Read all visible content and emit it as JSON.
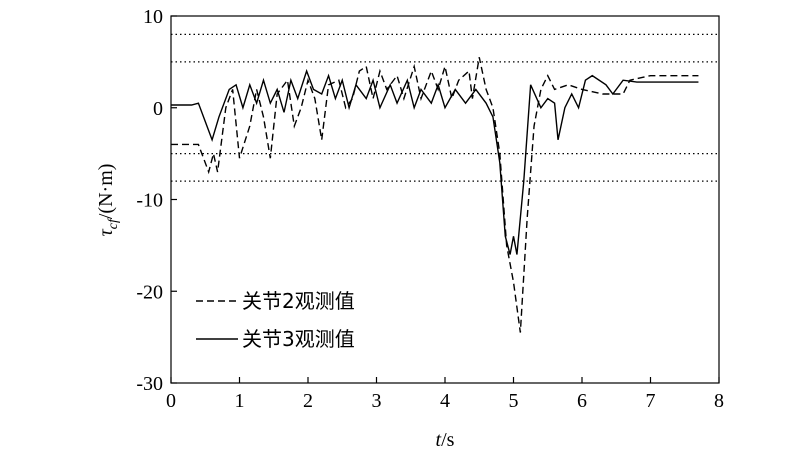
{
  "chart_data": {
    "type": "line",
    "xlabel": {
      "symbol": "t",
      "unit": "/s"
    },
    "ylabel": {
      "symbol": "τ",
      "subscript": "cf",
      "unit": "/(N·m)"
    },
    "xlim": [
      0,
      8
    ],
    "xticks": [
      0,
      1,
      2,
      3,
      4,
      5,
      6,
      7,
      8
    ],
    "ylim": [
      -30,
      10
    ],
    "yticks": [
      -30,
      -20,
      -10,
      0,
      10
    ],
    "reference_lines": [
      8,
      5,
      -5,
      -8
    ],
    "legend": "lower left",
    "series": [
      {
        "name": "关节2观测值",
        "color": "#000000",
        "dash": "dashed",
        "x": [
          0,
          0.4,
          0.55,
          0.62,
          0.68,
          0.8,
          0.9,
          1.0,
          1.15,
          1.25,
          1.35,
          1.45,
          1.55,
          1.7,
          1.8,
          1.9,
          2.0,
          2.1,
          2.2,
          2.3,
          2.45,
          2.55,
          2.65,
          2.75,
          2.85,
          2.95,
          3.05,
          3.15,
          3.3,
          3.4,
          3.55,
          3.65,
          3.8,
          3.9,
          4.0,
          4.1,
          4.2,
          4.35,
          4.4,
          4.5,
          4.6,
          4.7,
          4.8,
          4.9,
          5.0,
          5.1,
          5.2,
          5.3,
          5.4,
          5.5,
          5.6,
          5.8,
          6.0,
          6.3,
          6.6,
          6.7,
          7.0,
          7.7
        ],
        "values": [
          -4,
          -4,
          -7,
          -5,
          -7,
          0,
          2,
          -5.5,
          -2,
          2,
          -1,
          -5.5,
          1.5,
          3,
          -2,
          0,
          3,
          1,
          -3.5,
          2.5,
          3,
          0,
          1,
          4,
          4.5,
          1,
          4,
          2,
          3.5,
          1,
          4.5,
          1,
          4,
          2,
          4.5,
          1,
          3,
          4,
          1,
          5.5,
          2,
          0,
          -5,
          -15,
          -19,
          -24.5,
          -12,
          -2,
          2,
          3.5,
          2,
          2.5,
          2,
          1.5,
          1.5,
          3,
          3.5,
          3.5
        ]
      },
      {
        "name": "关节3观测值",
        "color": "#000000",
        "dash": "solid",
        "x": [
          0,
          0.3,
          0.4,
          0.5,
          0.6,
          0.7,
          0.75,
          0.85,
          0.95,
          1.05,
          1.15,
          1.25,
          1.35,
          1.45,
          1.55,
          1.65,
          1.75,
          1.85,
          1.98,
          2.08,
          2.2,
          2.3,
          2.4,
          2.5,
          2.6,
          2.7,
          2.85,
          2.95,
          3.05,
          3.2,
          3.3,
          3.45,
          3.55,
          3.65,
          3.8,
          3.9,
          4.0,
          4.15,
          4.3,
          4.45,
          4.6,
          4.7,
          4.8,
          4.88,
          4.95,
          5.0,
          5.05,
          5.15,
          5.25,
          5.4,
          5.5,
          5.6,
          5.65,
          5.75,
          5.85,
          5.95,
          6.05,
          6.15,
          6.35,
          6.45,
          6.6,
          6.8,
          7.7
        ],
        "values": [
          0.3,
          0.3,
          0.5,
          -1.5,
          -3.5,
          -1,
          0,
          2,
          2.5,
          0,
          2.5,
          0.5,
          3,
          0.5,
          2,
          -0.5,
          3,
          1,
          4,
          2,
          1.5,
          3.5,
          1,
          3,
          0,
          2.5,
          1,
          3,
          0,
          2.5,
          0.5,
          3,
          0,
          2,
          0.5,
          2.5,
          0,
          2,
          0.5,
          2,
          0.5,
          -1,
          -6,
          -14,
          -16,
          -14,
          -16,
          -8,
          2.5,
          0,
          1,
          0.5,
          -3.5,
          0,
          1.5,
          0,
          3,
          3.5,
          2.5,
          1.5,
          3,
          2.8,
          2.8
        ]
      }
    ]
  }
}
